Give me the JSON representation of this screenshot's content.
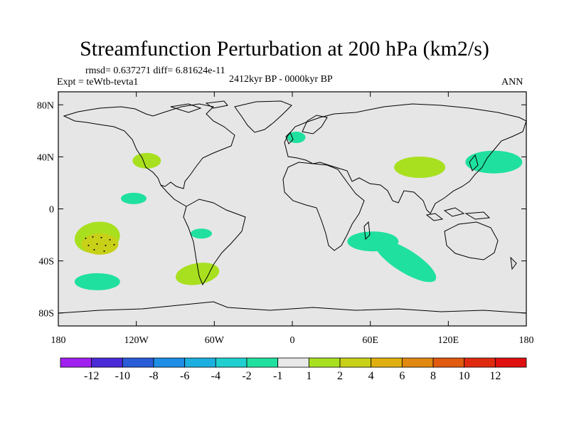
{
  "title": "Streamfunction Perturbation at 200 hPa (km2/s)",
  "stats_line": "rmsd= 0.637271 diff= 6.81624e-11",
  "expt_line": "Expt = teWtb-tevta1",
  "period_line": "2412kyr BP - 0000kyr BP",
  "season": "ANN",
  "lat_labels": [
    "80N",
    "40N",
    "0",
    "40S",
    "80S"
  ],
  "lon_labels": [
    "180",
    "120W",
    "60W",
    "0",
    "60E",
    "120E",
    "180"
  ],
  "colorbar": {
    "labels": [
      "-12",
      "-10",
      "-8",
      "-6",
      "-4",
      "-2",
      "-1",
      "1",
      "2",
      "4",
      "6",
      "8",
      "10",
      "12"
    ],
    "colors": [
      "#a020f0",
      "#4b2ad8",
      "#2a5cd8",
      "#1e8ee6",
      "#1cb0e0",
      "#20d0d0",
      "#20e0a0",
      "#e8e8e8",
      "#a8e020",
      "#c8d018",
      "#e0b010",
      "#e08810",
      "#e05a10",
      "#e02a10",
      "#e01010"
    ]
  },
  "chart_data": {
    "type": "map",
    "variable": "Streamfunction Perturbation at 200 hPa",
    "units": "km2/s",
    "lon_range": [
      -180,
      180
    ],
    "lat_range": [
      -90,
      90
    ],
    "contour_levels": [
      -12,
      -10,
      -8,
      -6,
      -4,
      -2,
      -1,
      1,
      2,
      4,
      6,
      8,
      10,
      12
    ],
    "anomalies": [
      {
        "lon": 3,
        "lat": 55,
        "value": -1.5
      },
      {
        "lon": -112,
        "lat": 37,
        "value": 1.5
      },
      {
        "lon": -122,
        "lat": 8,
        "value": -1.5
      },
      {
        "lon": -150,
        "lat": -22,
        "value": 1.5
      },
      {
        "lon": -148,
        "lat": -27,
        "value": 2.5
      },
      {
        "lon": -70,
        "lat": -19,
        "value": -1.5
      },
      {
        "lon": -150,
        "lat": -56,
        "value": -1.5
      },
      {
        "lon": -73,
        "lat": -50,
        "value": 1.5
      },
      {
        "lon": 62,
        "lat": -25,
        "value": -1.5
      },
      {
        "lon": 87,
        "lat": -40,
        "value": -1.5
      },
      {
        "lon": 98,
        "lat": 32,
        "value": 1.5
      },
      {
        "lon": 155,
        "lat": 36,
        "value": -1.5
      }
    ]
  }
}
